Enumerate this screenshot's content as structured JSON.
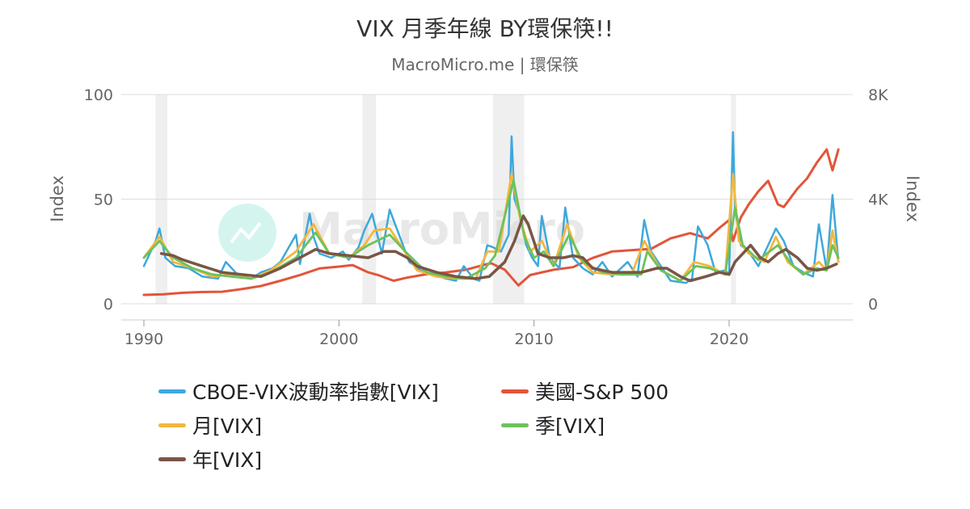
{
  "header": {
    "title": "VIX 月季年線 BY環保筷!!",
    "subtitle": "MacroMicro.me | 環保筷"
  },
  "watermark": "MacroMicro",
  "colors": {
    "vix": "#3ea8dc",
    "sp500": "#e2553a",
    "monthly": "#f3b73d",
    "quarterly": "#6cc25c",
    "yearly": "#7a5545",
    "recession": "#efefef",
    "grid": "#dddddd"
  },
  "chart_data": {
    "type": "line",
    "title": "VIX 月季年線 BY環保筷!!",
    "subtitle": "MacroMicro.me | 環保筷",
    "x_range": [
      1990,
      2025.8
    ],
    "x_ticks": [
      "1990",
      "2000",
      "2010",
      "2020"
    ],
    "y_left": {
      "label": "Index",
      "range": [
        0,
        100
      ],
      "ticks": [
        "0",
        "50",
        "100"
      ]
    },
    "y_right": {
      "label": "Index",
      "range": [
        0,
        8000
      ],
      "ticks": [
        "0",
        "4K",
        "8K"
      ]
    },
    "grid": true,
    "legend_position": "bottom",
    "recession_bands": [
      [
        1990.6,
        1991.2
      ],
      [
        2001.2,
        2001.9
      ],
      [
        2007.9,
        2009.5
      ],
      [
        2020.1,
        2020.35
      ]
    ],
    "series": [
      {
        "name": "CBOE-VIX波動率指數[VIX]",
        "axis": "left",
        "color": "#3ea8dc",
        "x": [
          1990.0,
          1990.6,
          1990.8,
          1991.1,
          1991.6,
          1992.3,
          1993.0,
          1993.8,
          1994.2,
          1994.8,
          1995.5,
          1996.0,
          1996.6,
          1997.0,
          1997.8,
          1998.0,
          1998.5,
          1998.7,
          1999.0,
          1999.6,
          2000.2,
          2000.5,
          2001.0,
          2001.3,
          2001.7,
          2002.2,
          2002.6,
          2002.8,
          2003.2,
          2003.6,
          2004.2,
          2004.8,
          2005.5,
          2006.0,
          2006.4,
          2006.9,
          2007.2,
          2007.6,
          2007.9,
          2008.3,
          2008.7,
          2008.85,
          2009.0,
          2009.3,
          2009.6,
          2009.9,
          2010.2,
          2010.4,
          2010.8,
          2011.3,
          2011.6,
          2011.75,
          2012.0,
          2012.5,
          2013.0,
          2013.5,
          2014.0,
          2014.8,
          2015.3,
          2015.65,
          2016.0,
          2016.5,
          2017.0,
          2017.8,
          2018.1,
          2018.4,
          2018.9,
          2019.3,
          2019.8,
          2020.0,
          2020.2,
          2020.3,
          2020.6,
          2021.0,
          2021.5,
          2022.0,
          2022.4,
          2022.8,
          2023.3,
          2023.8,
          2024.3,
          2024.6,
          2025.0,
          2025.3,
          2025.6
        ],
        "y": [
          18,
          30,
          36,
          22,
          18,
          17,
          13,
          12,
          20,
          14,
          12,
          15,
          17,
          20,
          33,
          19,
          43,
          32,
          24,
          22,
          25,
          21,
          27,
          35,
          43,
          24,
          45,
          40,
          30,
          20,
          16,
          14,
          12,
          11,
          18,
          12,
          11,
          28,
          27,
          25,
          33,
          80,
          50,
          42,
          28,
          22,
          18,
          42,
          22,
          17,
          46,
          37,
          22,
          17,
          14,
          20,
          13,
          20,
          13,
          40,
          25,
          18,
          11,
          10,
          12,
          37,
          28,
          15,
          16,
          14,
          82,
          45,
          28,
          25,
          18,
          28,
          36,
          30,
          18,
          15,
          13,
          38,
          16,
          52,
          20
        ]
      },
      {
        "name": "美國-S&P 500",
        "axis": "right",
        "color": "#e2553a",
        "x": [
          1990.0,
          1991.0,
          1992.0,
          1993.0,
          1994.0,
          1995.0,
          1996.0,
          1997.0,
          1998.0,
          1999.0,
          2000.0,
          2000.7,
          2001.5,
          2002.0,
          2002.8,
          2003.5,
          2004.5,
          2005.5,
          2006.5,
          2007.5,
          2007.8,
          2008.5,
          2009.2,
          2009.8,
          2011.0,
          2012.0,
          2013.0,
          2014.0,
          2015.0,
          2016.0,
          2017.0,
          2018.0,
          2018.9,
          2019.5,
          2020.0,
          2020.2,
          2020.6,
          2021.0,
          2021.5,
          2022.0,
          2022.5,
          2022.8,
          2023.5,
          2024.0,
          2024.5,
          2025.0,
          2025.3,
          2025.6
        ],
        "y": [
          340,
          360,
          420,
          450,
          460,
          560,
          680,
          880,
          1100,
          1350,
          1420,
          1480,
          1200,
          1100,
          880,
          1000,
          1130,
          1200,
          1300,
          1500,
          1550,
          1300,
          700,
          1100,
          1300,
          1400,
          1750,
          2000,
          2050,
          2100,
          2500,
          2700,
          2500,
          2900,
          3200,
          2400,
          3300,
          3800,
          4300,
          4700,
          3800,
          3700,
          4400,
          4800,
          5400,
          5900,
          5100,
          5900
        ]
      },
      {
        "name": "月[VIX]",
        "axis": "left",
        "color": "#f3b73d",
        "x": [
          1990.0,
          1990.8,
          1991.5,
          1992.5,
          1993.5,
          1994.5,
          1995.5,
          1996.5,
          1997.8,
          1998.7,
          1999.5,
          2000.5,
          2001.3,
          2001.8,
          2002.6,
          2003.3,
          2004.0,
          2005.0,
          2006.0,
          2007.0,
          2007.6,
          2008.2,
          2008.85,
          2009.3,
          2009.8,
          2010.4,
          2011.0,
          2011.7,
          2012.3,
          2013.0,
          2014.0,
          2015.0,
          2015.65,
          2016.5,
          2017.5,
          2018.2,
          2019.0,
          2019.8,
          2020.2,
          2020.5,
          2021.0,
          2021.8,
          2022.4,
          2023.0,
          2023.8,
          2024.6,
          2025.0,
          2025.3,
          2025.6
        ],
        "y": [
          22,
          32,
          20,
          17,
          13,
          14,
          12,
          16,
          25,
          38,
          24,
          22,
          28,
          35,
          36,
          26,
          16,
          13,
          12,
          12,
          25,
          25,
          62,
          40,
          25,
          30,
          18,
          38,
          22,
          15,
          14,
          14,
          30,
          16,
          11,
          20,
          18,
          14,
          62,
          30,
          24,
          20,
          32,
          20,
          14,
          20,
          16,
          35,
          20
        ]
      },
      {
        "name": "季[VIX]",
        "axis": "left",
        "color": "#6cc25c",
        "x": [
          1990.0,
          1990.8,
          1991.5,
          1992.5,
          1993.5,
          1994.5,
          1995.5,
          1996.5,
          1997.8,
          1998.8,
          1999.5,
          2000.5,
          2001.5,
          2002.6,
          2003.5,
          2004.5,
          2005.5,
          2006.5,
          2007.5,
          2008.0,
          2008.95,
          2009.5,
          2010.0,
          2010.5,
          2011.0,
          2011.8,
          2012.5,
          2013.5,
          2014.5,
          2015.5,
          2015.8,
          2016.5,
          2017.5,
          2018.3,
          2019.0,
          2019.8,
          2020.3,
          2020.7,
          2021.5,
          2022.5,
          2023.2,
          2023.8,
          2024.5,
          2025.0,
          2025.3,
          2025.6
        ],
        "y": [
          22,
          30,
          22,
          17,
          14,
          13,
          12,
          15,
          22,
          34,
          24,
          22,
          28,
          33,
          24,
          15,
          13,
          12,
          17,
          23,
          59,
          32,
          22,
          25,
          18,
          33,
          20,
          15,
          14,
          14,
          25,
          16,
          11,
          18,
          17,
          14,
          46,
          28,
          21,
          28,
          19,
          14,
          17,
          16,
          28,
          22
        ]
      },
      {
        "name": "年[VIX]",
        "axis": "left",
        "color": "#7a5545",
        "x": [
          1990.9,
          1991.5,
          1992.0,
          1993.0,
          1994.0,
          1995.0,
          1996.0,
          1997.0,
          1998.0,
          1998.8,
          1999.5,
          2000.5,
          2001.5,
          2002.3,
          2002.9,
          2003.5,
          2004.0,
          2005.0,
          2006.0,
          2007.0,
          2007.7,
          2008.5,
          2009.0,
          2009.45,
          2009.7,
          2010.2,
          2010.8,
          2011.5,
          2012.0,
          2012.5,
          2013.0,
          2014.0,
          2015.0,
          2015.5,
          2016.3,
          2016.8,
          2017.5,
          2018.0,
          2018.8,
          2019.5,
          2020.0,
          2020.3,
          2020.8,
          2021.1,
          2021.6,
          2022.0,
          2022.5,
          2022.9,
          2023.5,
          2024.0,
          2024.5,
          2025.0,
          2025.5
        ],
        "y": [
          24,
          23,
          21,
          18,
          15,
          14,
          13,
          17,
          22,
          26,
          24,
          23,
          22,
          25,
          25,
          22,
          18,
          15,
          13,
          12,
          13,
          20,
          30,
          42,
          38,
          24,
          22,
          22,
          23,
          22,
          17,
          15,
          15,
          15,
          17,
          17,
          13,
          11,
          13,
          15,
          14,
          20,
          25,
          28,
          22,
          20,
          24,
          26,
          22,
          17,
          16,
          17,
          19
        ]
      }
    ]
  }
}
